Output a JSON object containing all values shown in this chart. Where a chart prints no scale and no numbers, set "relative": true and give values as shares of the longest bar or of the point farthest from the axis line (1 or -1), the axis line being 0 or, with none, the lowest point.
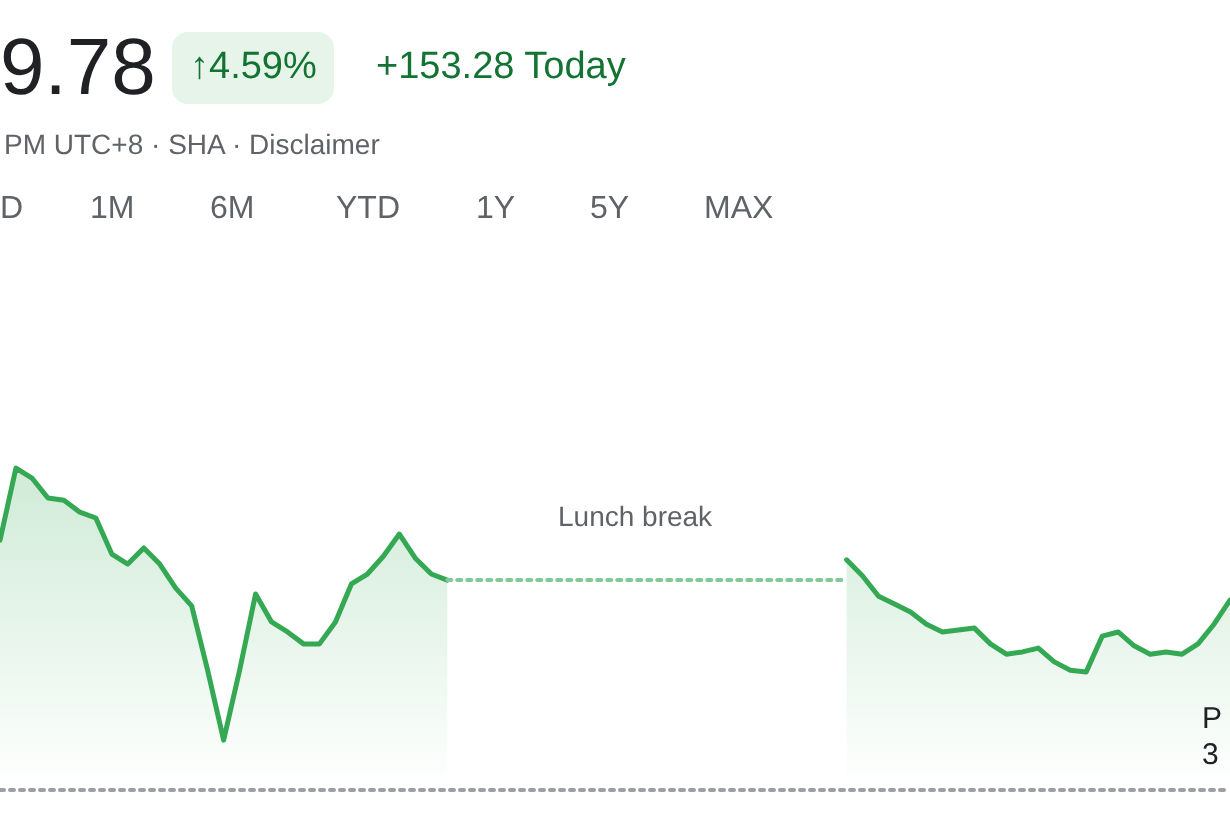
{
  "chart_data": {
    "type": "area",
    "title": "9.78",
    "subtitle": "PM UTC+8 · SHA · Disclaimer",
    "annotations": [
      "↑4.59%",
      "+153.28 Today",
      "D",
      "1M",
      "6M",
      "YTD",
      "1Y",
      "5Y",
      "MAX",
      "Lunch break",
      "P\n3"
    ],
    "relative": true,
    "categories": [
      null,
      null,
      null,
      null,
      null,
      null,
      null,
      null,
      null,
      null,
      null,
      null,
      null,
      null,
      null,
      null,
      null,
      null,
      null,
      null,
      null,
      null,
      null,
      null,
      null,
      null,
      null,
      null,
      null,
      null,
      null,
      null,
      null,
      null,
      null,
      null,
      null,
      null,
      null,
      null,
      null,
      null,
      null,
      null,
      null,
      null,
      null,
      null,
      null,
      null,
      null,
      null,
      null,
      null,
      null,
      null,
      null,
      null,
      null,
      null,
      null,
      null,
      null,
      null,
      null,
      null,
      null,
      null,
      null,
      null,
      null,
      null,
      null,
      null,
      null,
      null,
      null,
      null
    ],
    "series": [
      {
        "color": "#34a853",
        "values": [
          0.776,
          1,
          0.969,
          0.907,
          0.9,
          0.863,
          0.845,
          0.733,
          0.702,
          0.752,
          0.702,
          0.627,
          0.572,
          0.372,
          0.155,
          0.372,
          0.609,
          0.522,
          0.491,
          0.454,
          0.454,
          0.522,
          0.64,
          0.671,
          0.726,
          0.795,
          0.72,
          0.671,
          0.652,
          null,
          null,
          null,
          null,
          null,
          null,
          null,
          null,
          null,
          null,
          null,
          null,
          null,
          null,
          null,
          null,
          null,
          null,
          null,
          null,
          null,
          null,
          null,
          null,
          0.715,
          0.665,
          0.602,
          0.578,
          0.553,
          0.515,
          0.491,
          0.497,
          0.503,
          0.454,
          0.422,
          0.429,
          0.441,
          0.398,
          0.372,
          0.367,
          0.478,
          0.491,
          0.448,
          0.422,
          0.429,
          0.422,
          0.454,
          0.515,
          0.59
        ]
      },
      {
        "type": "line",
        "color": "#81c995",
        "line_style": "dotted",
        "values": [
          null,
          null,
          null,
          null,
          null,
          null,
          null,
          null,
          null,
          null,
          null,
          null,
          null,
          null,
          null,
          null,
          null,
          null,
          null,
          null,
          null,
          null,
          null,
          null,
          null,
          null,
          null,
          null,
          0.652,
          0.652,
          0.652,
          0.652,
          0.652,
          0.652,
          0.652,
          0.652,
          0.652,
          0.652,
          0.652,
          0.652,
          0.652,
          0.652,
          0.652,
          0.652,
          0.652,
          0.652,
          0.652,
          0.652,
          0.652,
          0.652,
          0.652,
          0.652,
          0.652,
          0.652,
          null,
          null,
          null,
          null,
          null,
          null,
          null,
          null,
          null,
          null,
          null,
          null,
          null,
          null,
          null,
          null,
          null,
          null,
          null,
          null,
          null,
          null,
          null,
          null
        ]
      },
      {
        "type": "line",
        "color": "#9aa0a6",
        "line_style": "dotted",
        "values": [
          0,
          0,
          0,
          0,
          0,
          0,
          0,
          0,
          0,
          0,
          0,
          0,
          0,
          0,
          0,
          0,
          0,
          0,
          0,
          0,
          0,
          0,
          0,
          0,
          0,
          0,
          0,
          0,
          0,
          0,
          0,
          0,
          0,
          0,
          0,
          0,
          0,
          0,
          0,
          0,
          0,
          0,
          0,
          0,
          0,
          0,
          0,
          0,
          0,
          0,
          0,
          0,
          0,
          0,
          0,
          0,
          0,
          0,
          0,
          0,
          0,
          0,
          0,
          0,
          0,
          0,
          0,
          0,
          0,
          0,
          0,
          0,
          0,
          0,
          0,
          0,
          0,
          0
        ]
      }
    ]
  }
}
